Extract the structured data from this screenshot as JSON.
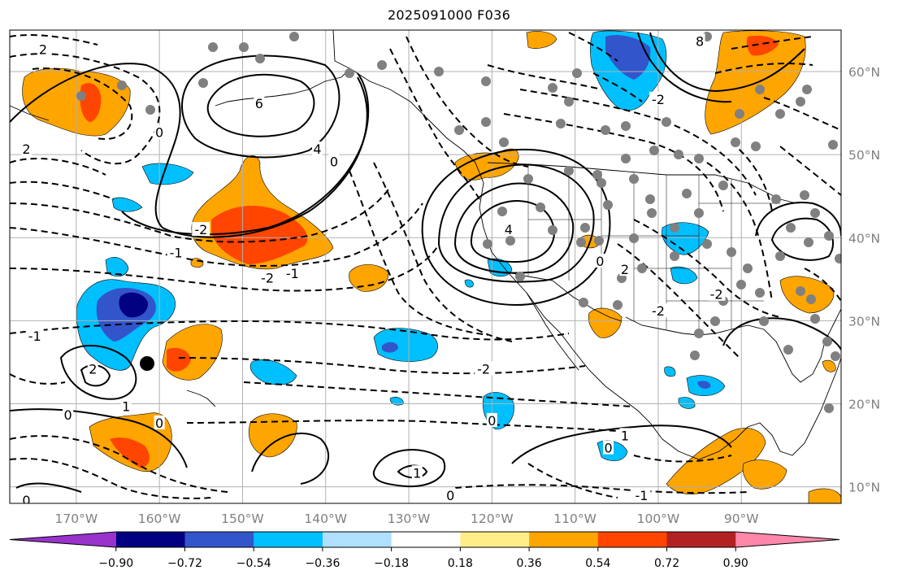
{
  "map": {
    "title": "2025091000 F036",
    "extent": {
      "lon_min": -178,
      "lon_max": -78,
      "lat_min": 8,
      "lat_max": 65
    },
    "lat_labels": [
      {
        "lat": 60,
        "text": "60°N"
      },
      {
        "lat": 50,
        "text": "50°N"
      },
      {
        "lat": 40,
        "text": "40°N"
      },
      {
        "lat": 30,
        "text": "30°N"
      },
      {
        "lat": 20,
        "text": "20°N"
      },
      {
        "lat": 10,
        "text": "10°N"
      }
    ],
    "lon_labels": [
      {
        "lon": -170,
        "text": "170°W"
      },
      {
        "lon": -160,
        "text": "160°W"
      },
      {
        "lon": -150,
        "text": "150°W"
      },
      {
        "lon": -140,
        "text": "140°W"
      },
      {
        "lon": -130,
        "text": "130°W"
      },
      {
        "lon": -120,
        "text": "120°W"
      },
      {
        "lon": -110,
        "text": "110°W"
      },
      {
        "lon": -100,
        "text": "100°W"
      },
      {
        "lon": -90,
        "text": "90°W"
      }
    ],
    "contour_labels": [
      {
        "text": "2",
        "lon": -174,
        "lat": 62.5
      },
      {
        "text": "6",
        "lon": -148,
        "lat": 56.0
      },
      {
        "text": "8",
        "lon": -95,
        "lat": 63.5
      },
      {
        "text": "-2",
        "lon": -100,
        "lat": 56.5
      },
      {
        "text": "0",
        "lon": -160,
        "lat": 52.5
      },
      {
        "text": "2",
        "lon": -176,
        "lat": 50.5
      },
      {
        "text": "4",
        "lon": -141,
        "lat": 50.5
      },
      {
        "text": "0",
        "lon": -139,
        "lat": 49.0
      },
      {
        "text": "-2",
        "lon": -155,
        "lat": 40.8
      },
      {
        "text": "-1",
        "lon": -158,
        "lat": 38.0
      },
      {
        "text": "-2",
        "lon": -147,
        "lat": 35.0
      },
      {
        "text": "-1",
        "lon": -144,
        "lat": 35.5
      },
      {
        "text": "4",
        "lon": -118,
        "lat": 40.8
      },
      {
        "text": "0",
        "lon": -107,
        "lat": 37.0
      },
      {
        "text": "2",
        "lon": -104,
        "lat": 36.0
      },
      {
        "text": "-2",
        "lon": -100,
        "lat": 31.0
      },
      {
        "text": "-2",
        "lon": -93,
        "lat": 33.0
      },
      {
        "text": "-1",
        "lon": -175,
        "lat": 28.0
      },
      {
        "text": "2",
        "lon": -168,
        "lat": 24.0
      },
      {
        "text": "1",
        "lon": -164,
        "lat": 19.5
      },
      {
        "text": "0",
        "lon": -171,
        "lat": 18.5
      },
      {
        "text": "0",
        "lon": -160,
        "lat": 17.5
      },
      {
        "text": "-2",
        "lon": -121,
        "lat": 24.0
      },
      {
        "text": "0",
        "lon": -120,
        "lat": 17.8
      },
      {
        "text": "1",
        "lon": -129,
        "lat": 11.5
      },
      {
        "text": "0",
        "lon": -125,
        "lat": 8.8
      },
      {
        "text": "1",
        "lon": -104,
        "lat": 16.0
      },
      {
        "text": "0",
        "lon": -106,
        "lat": 14.5
      },
      {
        "text": "-1",
        "lon": -102,
        "lat": 8.8
      },
      {
        "text": "0",
        "lon": -176,
        "lat": 8.2
      }
    ],
    "legend": {
      "boundaries": [
        -0.9,
        -0.72,
        -0.54,
        -0.36,
        -0.18,
        0.18,
        0.36,
        0.54,
        0.72,
        0.9
      ],
      "tick_labels": [
        "−0.90",
        "−0.72",
        "−0.54",
        "−0.36",
        "−0.18",
        "0.18",
        "0.36",
        "0.54",
        "0.72",
        "0.90"
      ],
      "colors": [
        "#9933cc",
        "#000080",
        "#3355cc",
        "#00bfff",
        "#b0e0ff",
        "#ffffff",
        "#ffee88",
        "#ffa500",
        "#ff4500",
        "#b22222",
        "#ff88aa"
      ]
    },
    "colors": {
      "grid": "#b0b0b0",
      "axis_text": "#808080",
      "contour": "#000000",
      "dots": "#808080",
      "marker": "#000000",
      "shade_orange": "#ffa500",
      "shade_red": "#ff4500",
      "shade_blue": "#00bfff",
      "shade_mid_blue": "#3355cc",
      "shade_dark_blue": "#000080"
    }
  }
}
